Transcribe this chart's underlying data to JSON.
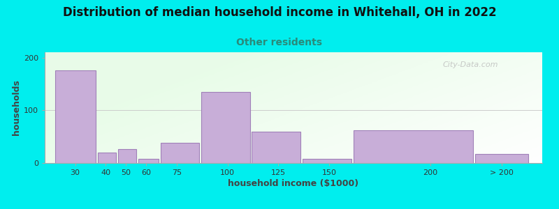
{
  "title": "Distribution of median household income in Whitehall, OH in 2022",
  "subtitle": "Other residents",
  "xlabel": "household income ($1000)",
  "ylabel": "households",
  "background_color": "#00EEEE",
  "bar_color": "#c8aed8",
  "bar_edge_color": "#a080b8",
  "categories": [
    "30",
    "40",
    "50",
    "60",
    "75",
    "100",
    "125",
    "150",
    "200",
    "> 200"
  ],
  "values": [
    175,
    20,
    27,
    8,
    38,
    135,
    60,
    8,
    62,
    17
  ],
  "yticks": [
    0,
    100,
    200
  ],
  "ylim": [
    0,
    210
  ],
  "watermark": "City-Data.com",
  "title_fontsize": 12,
  "subtitle_fontsize": 10,
  "subtitle_color": "#2a8a7a",
  "axis_label_fontsize": 9,
  "tick_fontsize": 8,
  "bar_lefts": [
    15,
    36,
    46,
    56,
    67,
    87,
    112,
    137,
    162,
    222
  ],
  "bar_rights": [
    35,
    45,
    55,
    66,
    86,
    111,
    136,
    161,
    221,
    248
  ],
  "bar_values": [
    175,
    20,
    27,
    8,
    38,
    135,
    60,
    8,
    62,
    17
  ],
  "tick_positions": [
    25,
    40,
    50,
    60,
    75,
    100,
    125,
    150,
    200,
    235
  ],
  "xlim": [
    10,
    255
  ]
}
